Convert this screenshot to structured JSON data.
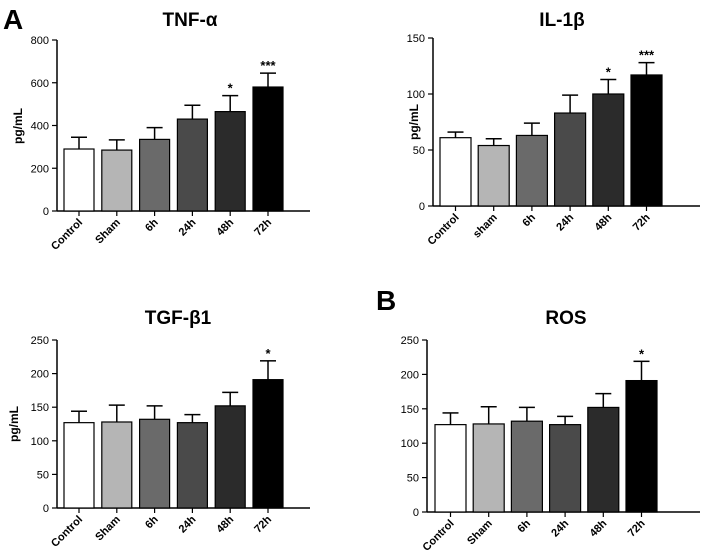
{
  "panel_letters": [
    "A",
    "B"
  ],
  "chart_data": [
    {
      "type": "bar",
      "title": "TNF-α",
      "ylabel": "pg/mL",
      "xlabel": "",
      "ylim": [
        0,
        800
      ],
      "yticks": [
        0,
        200,
        400,
        600,
        800
      ],
      "categories": [
        "Control",
        "Sham",
        "6h",
        "24h",
        "48h",
        "72h"
      ],
      "values": [
        290,
        285,
        335,
        430,
        465,
        580
      ],
      "errors": [
        55,
        48,
        55,
        65,
        75,
        65
      ],
      "significance": [
        "",
        "",
        "",
        "",
        "*",
        "***"
      ],
      "colors": [
        "#ffffff",
        "#b5b5b5",
        "#6a6a6a",
        "#4a4a4a",
        "#2b2b2b",
        "#000000"
      ]
    },
    {
      "type": "bar",
      "title": "IL-1β",
      "ylabel": "pg/mL",
      "xlabel": "",
      "ylim": [
        0,
        150
      ],
      "yticks": [
        0,
        50,
        100,
        150
      ],
      "categories": [
        "Control",
        "sham",
        "6h",
        "24h",
        "48h",
        "72h"
      ],
      "values": [
        61,
        54,
        63,
        83,
        100,
        117
      ],
      "errors": [
        5,
        6,
        11,
        16,
        13,
        11
      ],
      "significance": [
        "",
        "",
        "",
        "",
        "*",
        "***"
      ],
      "colors": [
        "#ffffff",
        "#b5b5b5",
        "#6a6a6a",
        "#4a4a4a",
        "#2b2b2b",
        "#000000"
      ]
    },
    {
      "type": "bar",
      "title": "TGF-β1",
      "ylabel": "pg/mL",
      "xlabel": "",
      "ylim": [
        0,
        250
      ],
      "yticks": [
        0,
        50,
        100,
        150,
        200,
        250
      ],
      "categories": [
        "Control",
        "Sham",
        "6h",
        "24h",
        "48h",
        "72h"
      ],
      "values": [
        127,
        128,
        132,
        127,
        152,
        191
      ],
      "errors": [
        17,
        25,
        20,
        12,
        20,
        28
      ],
      "significance": [
        "",
        "",
        "",
        "",
        "",
        "*"
      ],
      "colors": [
        "#ffffff",
        "#b5b5b5",
        "#6a6a6a",
        "#4a4a4a",
        "#2b2b2b",
        "#000000"
      ]
    },
    {
      "type": "bar",
      "title": "ROS",
      "ylabel": "",
      "xlabel": "",
      "ylim": [
        0,
        250
      ],
      "yticks": [
        0,
        50,
        100,
        150,
        200,
        250
      ],
      "categories": [
        "Control",
        "Sham",
        "6h",
        "24h",
        "48h",
        "72h"
      ],
      "values": [
        127,
        128,
        132,
        127,
        152,
        191
      ],
      "errors": [
        17,
        25,
        20,
        12,
        20,
        28
      ],
      "significance": [
        "",
        "",
        "",
        "",
        "",
        "*"
      ],
      "colors": [
        "#ffffff",
        "#b5b5b5",
        "#6a6a6a",
        "#4a4a4a",
        "#2b2b2b",
        "#000000"
      ]
    }
  ]
}
